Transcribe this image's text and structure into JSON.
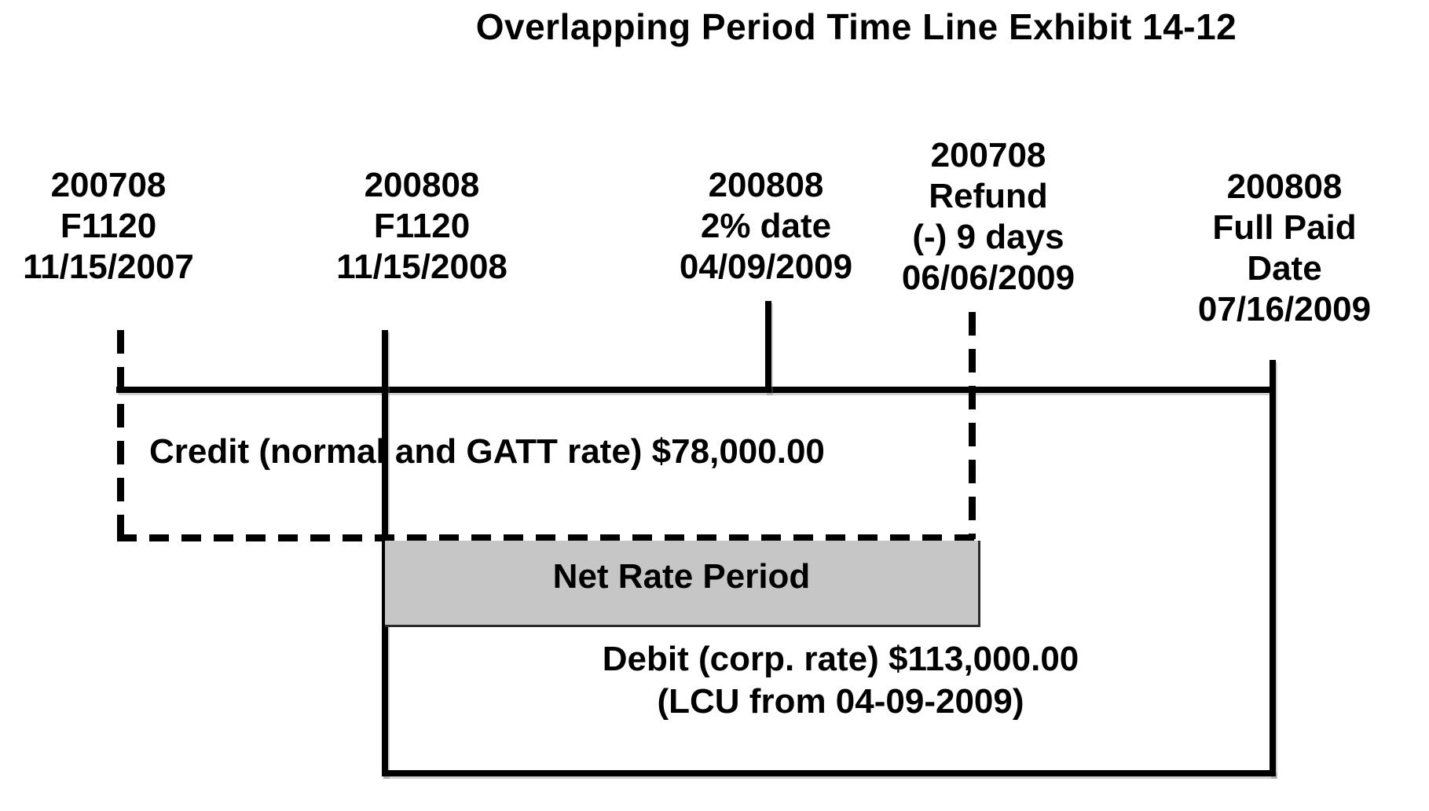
{
  "title": {
    "line1": "Overlapping Period Time Line",
    "line2": "Exhibit 14-12"
  },
  "milestones": [
    {
      "id": "f1120-2007",
      "lines": [
        "200708",
        "F1120",
        "11/15/2007"
      ]
    },
    {
      "id": "f1120-2008",
      "lines": [
        "200808",
        "F1120",
        "11/15/2008"
      ]
    },
    {
      "id": "two-percent-date",
      "lines": [
        "200808",
        "2% date",
        "04/09/2009"
      ]
    },
    {
      "id": "refund-date",
      "lines": [
        "200708",
        "Refund",
        "(-) 9 days",
        "06/06/2009"
      ]
    },
    {
      "id": "full-paid-date",
      "lines": [
        "200808",
        "Full Paid",
        "Date",
        "07/16/2009"
      ]
    }
  ],
  "periods": {
    "credit": "Credit (normal and GATT rate) $78,000.00",
    "net_rate": "Net Rate Period",
    "debit_line1": "Debit (corp. rate) $113,000.00",
    "debit_line2": "(LCU from 04-09-2009)"
  },
  "colors": {
    "ink": "#000000",
    "net_rate_fill": "#c6c6c6",
    "background": "#ffffff"
  }
}
